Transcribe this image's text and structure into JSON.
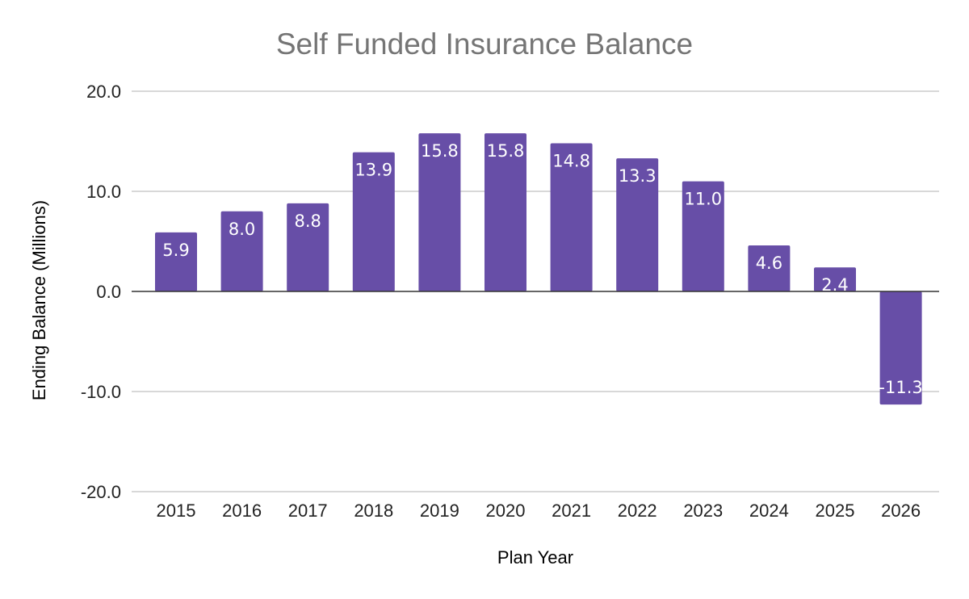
{
  "chart_data": {
    "type": "bar",
    "title": "Self Funded Insurance Balance",
    "xlabel": "Plan Year",
    "ylabel": "Ending Balance (Millions)",
    "categories": [
      "2015",
      "2016",
      "2017",
      "2018",
      "2019",
      "2020",
      "2021",
      "2022",
      "2023",
      "2024",
      "2025",
      "2026"
    ],
    "series": [
      {
        "values": [
          5.9,
          8.0,
          8.8,
          13.9,
          15.8,
          15.8,
          14.8,
          13.3,
          11.0,
          4.6,
          2.4,
          -11.3
        ],
        "labels": [
          "5.9",
          "8.0",
          "8.8",
          "13.9",
          "15.8",
          "15.8",
          "14.8",
          "13.3",
          "11.0",
          "4.6",
          "2.4",
          "-11.3"
        ],
        "color": "#674ea7"
      }
    ],
    "ylim": [
      -20,
      20
    ],
    "yticks": [
      20,
      10,
      0,
      -10,
      -20
    ],
    "ytick_labels": [
      "20.0",
      "10.0",
      "0.0",
      "-10.0",
      "-20.0"
    ],
    "grid": true,
    "legend": "none"
  }
}
